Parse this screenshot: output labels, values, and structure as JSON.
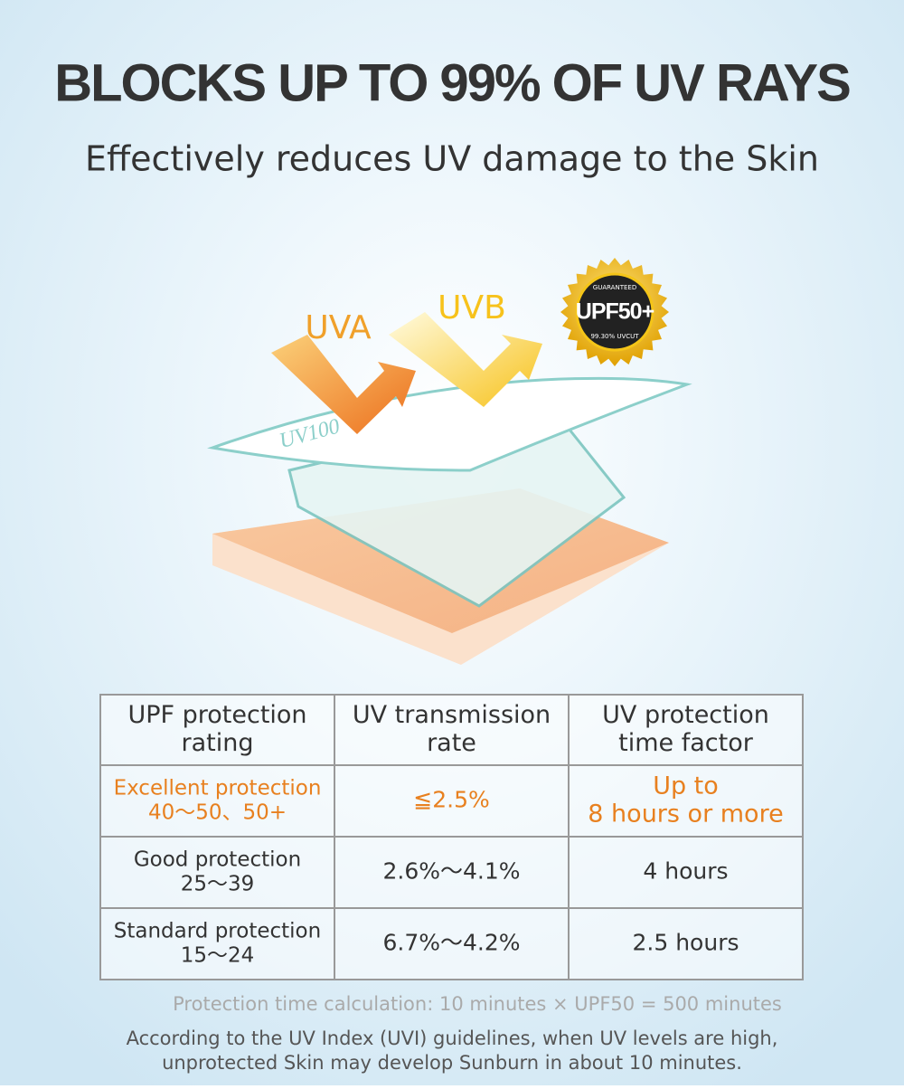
{
  "header": {
    "title": "BLOCKS UP TO 99% OF UV RAYS",
    "subtitle": "Effectively reduces UV damage to the Skin"
  },
  "illustration": {
    "uva": "UVA",
    "uvb": "UVB",
    "fabric": "UV100",
    "badge": {
      "top": "GUARANTEED",
      "main": "UPF50+",
      "bottom": "99.30% UVCUT"
    }
  },
  "table": {
    "header": [
      [
        "UPF protection",
        "rating"
      ],
      [
        "UV transmission",
        "rate"
      ],
      [
        "UV protection",
        "time factor"
      ]
    ],
    "rows": [
      [
        [
          "Excellent protection",
          "40～50、50+"
        ],
        [
          "≦2.5%"
        ],
        [
          "Up to",
          "8 hours or more"
        ]
      ],
      [
        [
          "Good protection",
          "25～39"
        ],
        [
          "2.6%～4.1%"
        ],
        [
          "4 hours"
        ]
      ],
      [
        [
          "Standard protection",
          "15～24"
        ],
        [
          "6.7%～4.2%"
        ],
        [
          "2.5 hours"
        ]
      ]
    ]
  },
  "notes": {
    "calculation": "Protection time calculation: 10 minutes × UPF50 = 500 minutes",
    "guideline": [
      "According to the UV Index (UVI) guidelines, when UV levels are high,",
      "unprotected Skin may develop Sunburn in about 10 minutes."
    ]
  }
}
